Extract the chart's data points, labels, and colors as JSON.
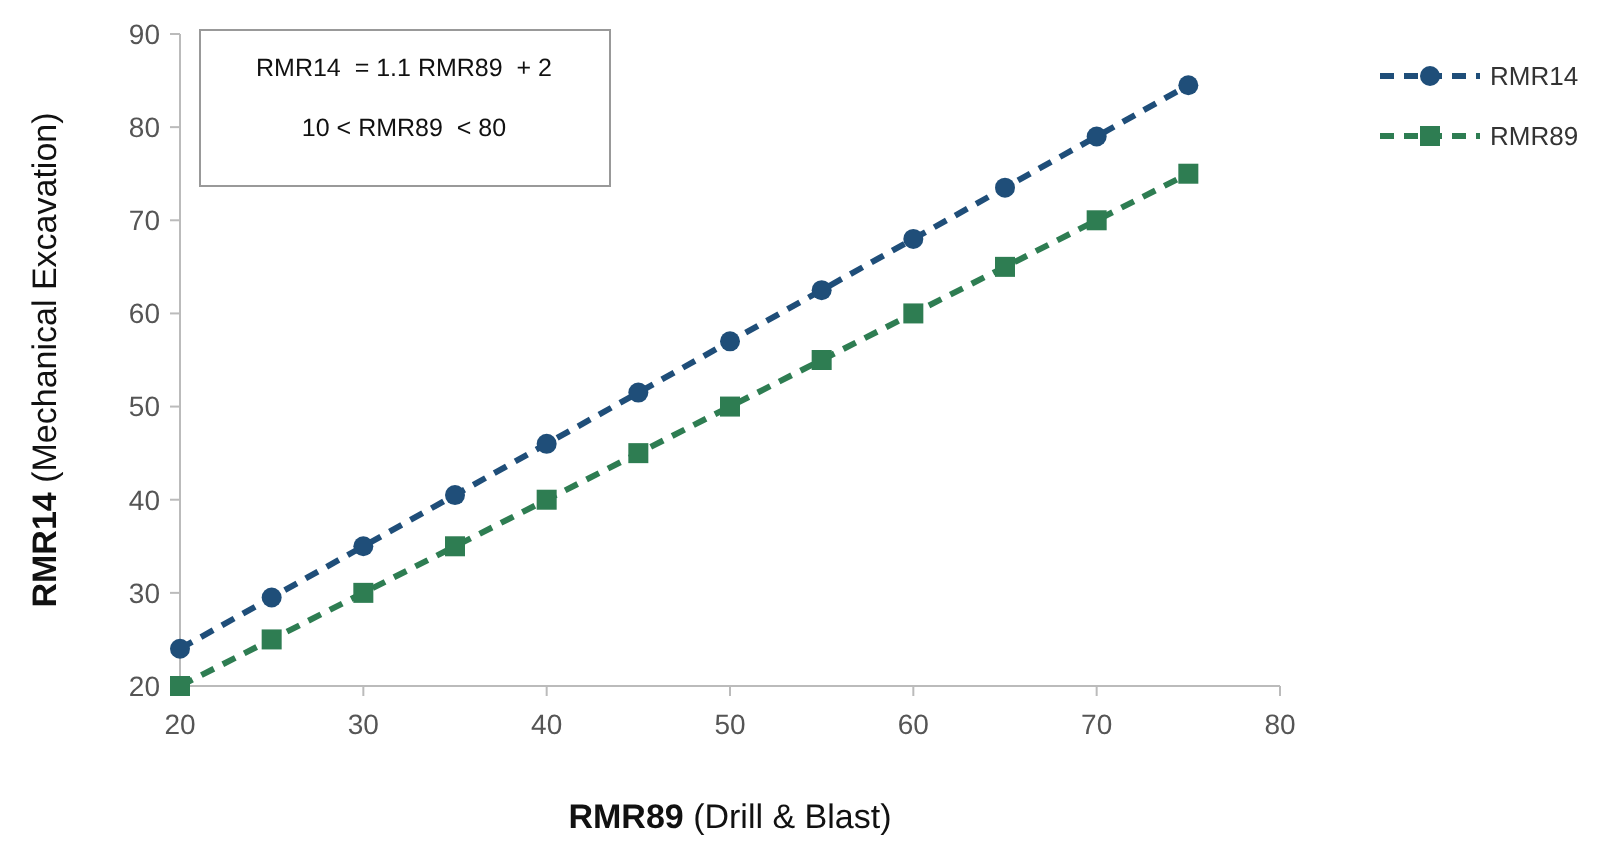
{
  "chart_data": {
    "type": "line",
    "xlabel": "RMR89 (Drill & Blast)",
    "ylabel": "RMR14 (Mechanical Excavation)",
    "x": [
      20,
      25,
      30,
      35,
      40,
      45,
      50,
      55,
      60,
      65,
      70,
      75
    ],
    "series": [
      {
        "name": "RMR14",
        "color": "#1f4e79",
        "marker": "circle",
        "values": [
          24,
          29.5,
          35,
          40.5,
          46,
          51.5,
          57,
          62.5,
          68,
          73.5,
          79,
          84.5
        ]
      },
      {
        "name": "RMR89",
        "color": "#2e7d52",
        "marker": "square",
        "values": [
          20,
          25,
          30,
          35,
          40,
          45,
          50,
          55,
          60,
          65,
          70,
          75
        ]
      }
    ],
    "xlim": [
      20,
      80
    ],
    "xticks": [
      20,
      30,
      40,
      50,
      60,
      70,
      80
    ],
    "ylim": [
      20,
      90
    ],
    "yticks": [
      20,
      30,
      40,
      50,
      60,
      70,
      80,
      90
    ],
    "line_style": "dashed",
    "grid": false,
    "legend": "top right",
    "annotations": [
      "RMR14  = 1.1 RMR89  + 2",
      "10 < RMR89  < 80"
    ]
  }
}
